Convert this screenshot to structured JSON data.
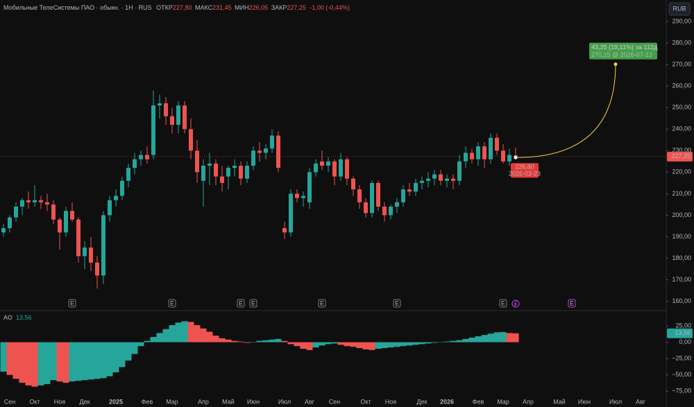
{
  "chart_data": {
    "type": "candlestick",
    "header": {
      "name": "Мобильные ТелеСистемы ПАО · обыкн. · 1Н · RUS",
      "open_label": "ОТКР",
      "open": "227,80",
      "high_label": "МАКС",
      "high": "231,45",
      "low_label": "МИН",
      "low": "226,05",
      "close_label": "ЗАКР",
      "close": "227,25",
      "change": "-1,00 (-0,44%)"
    },
    "currency": "RUB",
    "up_color": "#26a69a",
    "down_color": "#ef5350",
    "categories": [
      null,
      "Сен",
      null,
      null,
      null,
      "Окт",
      null,
      null,
      null,
      "Ноя",
      null,
      null,
      null,
      "Дек",
      null,
      null,
      null,
      null,
      "2025",
      null,
      null,
      null,
      null,
      "Фев",
      null,
      null,
      null,
      "Мар",
      null,
      null,
      null,
      null,
      "Апр",
      null,
      null,
      null,
      "Май",
      null,
      null,
      null,
      "Июн",
      null,
      null,
      null,
      null,
      "Июл",
      null,
      null,
      null,
      "Авг",
      null,
      null,
      null,
      "Сен",
      null,
      null,
      null,
      null,
      "Окт",
      null,
      null,
      null,
      "Ноя",
      null,
      null,
      null,
      null,
      "Дек",
      null,
      null,
      null,
      "2026",
      null,
      null,
      null,
      null,
      "Фев",
      null,
      null,
      null,
      "Мар",
      null,
      null,
      null,
      "Апр",
      null,
      null,
      null,
      null,
      "Май",
      null,
      null,
      null,
      "Июн",
      null,
      null,
      null,
      null,
      "Июл",
      null,
      null,
      null,
      "Авг",
      null,
      null,
      null
    ],
    "ohlc": [
      [
        192,
        196,
        190,
        194
      ],
      [
        194,
        200,
        192,
        199
      ],
      [
        199,
        206,
        197,
        204
      ],
      [
        204,
        208,
        200,
        207
      ],
      [
        207,
        211,
        203,
        206
      ],
      [
        206,
        214,
        204,
        207
      ],
      [
        207,
        209,
        203,
        206
      ],
      [
        206,
        210,
        202,
        205
      ],
      [
        205,
        207,
        196,
        198
      ],
      [
        198,
        199,
        184,
        192
      ],
      [
        192,
        204,
        190,
        202
      ],
      [
        202,
        206,
        197,
        198
      ],
      [
        198,
        199,
        178,
        181
      ],
      [
        181,
        188,
        175,
        185
      ],
      [
        185,
        190,
        174,
        178
      ],
      [
        178,
        181,
        166,
        172
      ],
      [
        172,
        202,
        168,
        200
      ],
      [
        200,
        209,
        197,
        207
      ],
      [
        207,
        212,
        204,
        209
      ],
      [
        209,
        218,
        207,
        216
      ],
      [
        216,
        224,
        213,
        222
      ],
      [
        222,
        229,
        219,
        226
      ],
      [
        226,
        230,
        223,
        228
      ],
      [
        228,
        232,
        224,
        226
      ],
      [
        228,
        258,
        226,
        251
      ],
      [
        251,
        256,
        245,
        252
      ],
      [
        252,
        255,
        242,
        246
      ],
      [
        246,
        250,
        238,
        242
      ],
      [
        242,
        253,
        238,
        251
      ],
      [
        251,
        253,
        238,
        240
      ],
      [
        240,
        245,
        226,
        230
      ],
      [
        230,
        235,
        215,
        220
      ],
      [
        216,
        226,
        204,
        223
      ],
      [
        223,
        229,
        214,
        224
      ],
      [
        224,
        226,
        214,
        218
      ],
      [
        218,
        223,
        211,
        215
      ],
      [
        218,
        223,
        212,
        222
      ],
      [
        222,
        226,
        218,
        223
      ],
      [
        223,
        225,
        214,
        217
      ],
      [
        217,
        225,
        215,
        223
      ],
      [
        223,
        232,
        221,
        230
      ],
      [
        230,
        234,
        225,
        229
      ],
      [
        229,
        233,
        226,
        231
      ],
      [
        231,
        240,
        229,
        237
      ],
      [
        237,
        239,
        220,
        222
      ],
      [
        194,
        197,
        189,
        192
      ],
      [
        192,
        212,
        190,
        210
      ],
      [
        210,
        212,
        206,
        208
      ],
      [
        208,
        211,
        204,
        209
      ],
      [
        206,
        222,
        203,
        220
      ],
      [
        220,
        226,
        218,
        224
      ],
      [
        225,
        230,
        221,
        223
      ],
      [
        223,
        227,
        220,
        225
      ],
      [
        225,
        226,
        214,
        218
      ],
      [
        218,
        229,
        216,
        226
      ],
      [
        226,
        227,
        214,
        217
      ],
      [
        217,
        218,
        209,
        212
      ],
      [
        212,
        214,
        203,
        206
      ],
      [
        206,
        208,
        199,
        201
      ],
      [
        201,
        216,
        199,
        215
      ],
      [
        215,
        216,
        202,
        204
      ],
      [
        204,
        206,
        197,
        200
      ],
      [
        200,
        205,
        198,
        204
      ],
      [
        204,
        208,
        201,
        206
      ],
      [
        206,
        214,
        204,
        212
      ],
      [
        212,
        215,
        209,
        211
      ],
      [
        211,
        217,
        209,
        215
      ],
      [
        215,
        218,
        212,
        216
      ],
      [
        216,
        220,
        213,
        217
      ],
      [
        217,
        221,
        214,
        219
      ],
      [
        219,
        221,
        214,
        216
      ],
      [
        216,
        219,
        213,
        217
      ],
      [
        217,
        219,
        212,
        216
      ],
      [
        216,
        228,
        214,
        225
      ],
      [
        225,
        232,
        222,
        229
      ],
      [
        229,
        231,
        224,
        226
      ],
      [
        226,
        234,
        223,
        232
      ],
      [
        232,
        234,
        222,
        226
      ],
      [
        226,
        238,
        224,
        236
      ],
      [
        236,
        238,
        228,
        230
      ],
      [
        230,
        233,
        224,
        225
      ],
      [
        225,
        231,
        223,
        228
      ],
      [
        227.8,
        231.45,
        226.05,
        227.25
      ],
      null,
      null,
      null,
      null,
      null,
      null,
      null,
      null,
      null,
      null,
      null,
      null,
      null,
      null,
      null,
      null,
      null,
      null,
      null,
      null,
      null,
      null,
      null
    ],
    "ylim": [
      156,
      300
    ],
    "yticks": [
      {
        "value": 160,
        "label": "160,00"
      },
      {
        "value": 170,
        "label": "170,00"
      },
      {
        "value": 180,
        "label": "180,00"
      },
      {
        "value": 190,
        "label": "190,00"
      },
      {
        "value": 200,
        "label": "200,00"
      },
      {
        "value": 210,
        "label": "210,00"
      },
      {
        "value": 220,
        "label": "220,00"
      },
      {
        "value": 230,
        "label": "230,00"
      },
      {
        "value": 240,
        "label": "240,00"
      },
      {
        "value": 250,
        "label": "250,00"
      },
      {
        "value": 260,
        "label": "260,00"
      },
      {
        "value": 270,
        "label": "270,00"
      },
      {
        "value": 280,
        "label": "280,00"
      },
      {
        "value": 290,
        "label": "290,00"
      }
    ],
    "last_price": {
      "value": 227.25,
      "label": "227,25"
    },
    "projection": {
      "start_price": 226.8,
      "start_label": "226,80",
      "start_date": "2026-03-23",
      "end_price": 270.15,
      "end_label": "270,15 @ 2026-07-13",
      "change_label": "43,35 (19,11%) за 112д",
      "days": 112
    },
    "events": [
      {
        "week": 11,
        "label": "E"
      },
      {
        "week": 27,
        "label": "E"
      },
      {
        "week": 38,
        "label": "E"
      },
      {
        "week": 40,
        "label": "E"
      },
      {
        "week": 51,
        "label": "E"
      },
      {
        "week": 63,
        "label": "E"
      },
      {
        "week": 80,
        "label": "E"
      },
      {
        "week": 91,
        "label": "E"
      }
    ],
    "ao": {
      "name": "AO",
      "last_label": "13,56",
      "values": [
        -45,
        -50,
        -56,
        -62,
        -66,
        -68,
        -66,
        -64,
        -58,
        -60,
        -62,
        -60,
        -59,
        -58,
        -57,
        -56,
        -55,
        -52,
        -46,
        -38,
        -28,
        -18,
        -6,
        2,
        8,
        14,
        20,
        26,
        30,
        32,
        31,
        26,
        21,
        16,
        10,
        6,
        4,
        2,
        1,
        -1,
        0,
        2,
        3,
        4,
        5,
        2,
        -3,
        -6,
        -10,
        -12,
        -8,
        -5,
        -3,
        -2,
        -4,
        -6,
        -7,
        -9,
        -11,
        -12,
        -10,
        -9,
        -8,
        -7,
        -6,
        -5,
        -4,
        -3,
        -2,
        -1,
        0,
        1,
        2,
        3,
        5,
        7,
        9,
        11,
        13,
        15,
        15.5,
        14,
        13.56,
        null,
        null,
        null,
        null,
        null,
        null,
        null,
        null,
        null,
        null,
        null,
        null,
        null,
        null,
        null,
        null,
        null,
        null,
        null,
        null,
        null,
        null,
        null
      ],
      "ylim": [
        -81,
        44
      ],
      "yticks": [
        {
          "value": 25,
          "label": "25,00"
        },
        {
          "value": 0,
          "label": "0,00"
        },
        {
          "value": -25,
          "label": "−25,00"
        },
        {
          "value": -50,
          "label": "−50,00"
        },
        {
          "value": -75,
          "label": "−75,00"
        }
      ]
    }
  }
}
